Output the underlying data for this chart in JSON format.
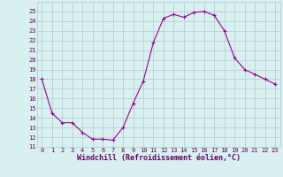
{
  "hours": [
    0,
    1,
    2,
    3,
    4,
    5,
    6,
    7,
    8,
    9,
    10,
    11,
    12,
    13,
    14,
    15,
    16,
    17,
    18,
    19,
    20,
    21,
    22,
    23
  ],
  "values": [
    18.0,
    14.5,
    13.5,
    13.5,
    12.5,
    11.8,
    11.8,
    11.7,
    13.0,
    15.5,
    17.8,
    21.8,
    24.3,
    24.7,
    24.4,
    24.9,
    25.0,
    24.6,
    23.0,
    20.2,
    19.0,
    18.5,
    18.0,
    17.5
  ],
  "line_color": "#990099",
  "marker": "+",
  "marker_size": 3,
  "marker_linewidth": 0.8,
  "bg_color": "#d8f0f0",
  "grid_color": "#b0c8c8",
  "xlabel": "Windchill (Refroidissement éolien,°C)",
  "xlabel_color": "#660066",
  "tick_color": "#660066",
  "ylim": [
    11,
    26
  ],
  "yticks": [
    11,
    12,
    13,
    14,
    15,
    16,
    17,
    18,
    19,
    20,
    21,
    22,
    23,
    24,
    25
  ],
  "line_width": 0.8,
  "tick_fontsize": 5.0,
  "xlabel_fontsize": 6.0
}
